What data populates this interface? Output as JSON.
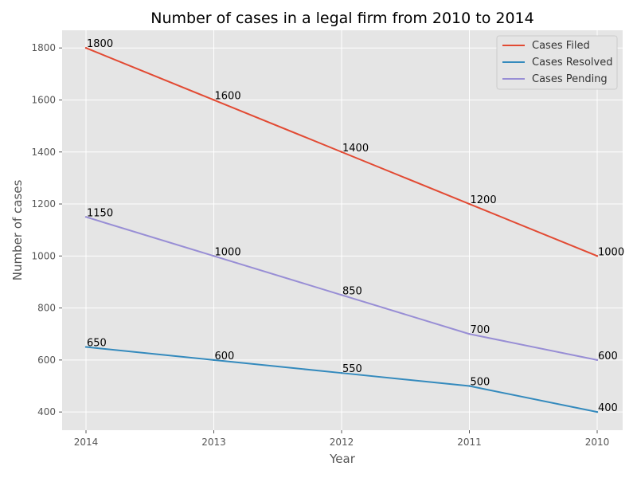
{
  "chart_data": {
    "type": "line",
    "title": "Number of cases in a legal firm from 2010 to 2014",
    "xlabel": "Year",
    "ylabel": "Number of cases",
    "categories": [
      "2014",
      "2013",
      "2012",
      "2011",
      "2010"
    ],
    "series": [
      {
        "name": "Cases Filed",
        "values": [
          1800,
          1600,
          1400,
          1200,
          1000
        ],
        "color": "#e24a33"
      },
      {
        "name": "Cases Resolved",
        "values": [
          650,
          600,
          550,
          500,
          400
        ],
        "color": "#348abd"
      },
      {
        "name": "Cases Pending",
        "values": [
          1150,
          1000,
          850,
          700,
          600
        ],
        "color": "#988ed5"
      }
    ],
    "y_ticks": [
      400,
      600,
      800,
      1000,
      1200,
      1400,
      1600,
      1800
    ],
    "ylim": [
      330,
      1868
    ],
    "grid": true,
    "legend_position": "top-right",
    "background_color": "#e5e5e5",
    "grid_color": "#ffffff"
  }
}
